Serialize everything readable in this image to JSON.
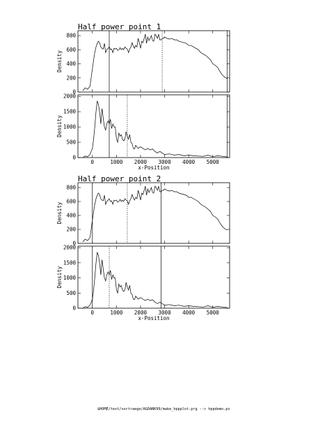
{
  "footer": "$HOME/text/vortraege/AGDANK99/make_hppplot.prg --> hppdemo.ps",
  "chart_data": [
    {
      "type": "line",
      "title": "Half power point 1",
      "ylabel": "Density",
      "xlabel": "",
      "xlim": [
        -600,
        5700
      ],
      "ylim": [
        0,
        870
      ],
      "xticks": [
        0,
        1000,
        2000,
        3000,
        4000,
        5000
      ],
      "xtick_labels": [],
      "yticks": [
        0,
        200,
        400,
        600,
        800
      ],
      "ytick_labels": [
        "0",
        "200",
        "400",
        "600",
        "800"
      ],
      "grid": false,
      "series": [
        {
          "x": [
            -400,
            -300,
            -200,
            -100,
            0,
            50,
            100,
            150,
            200,
            250,
            300,
            350,
            400,
            450,
            500,
            550,
            600,
            650,
            700,
            750,
            800,
            850,
            900,
            950,
            1000,
            1050,
            1100,
            1150,
            1200,
            1250,
            1300,
            1350,
            1400,
            1450,
            1500,
            1550,
            1600,
            1650,
            1700,
            1750,
            1800,
            1850,
            1900,
            1950,
            2000,
            2050,
            2100,
            2150,
            2200,
            2250,
            2300,
            2350,
            2400,
            2450,
            2500,
            2550,
            2600,
            2650,
            2700,
            2750,
            2800,
            2850,
            2900,
            2950,
            3000,
            3100,
            3200,
            3300,
            3400,
            3500,
            3600,
            3700,
            3800,
            3900,
            4000,
            4100,
            4200,
            4300,
            4400,
            4500,
            4600,
            4700,
            4800,
            4900,
            5000,
            5100,
            5200,
            5300,
            5400,
            5500,
            5600
          ],
          "y": [
            20,
            60,
            40,
            80,
            330,
            450,
            560,
            640,
            690,
            720,
            700,
            640,
            620,
            610,
            690,
            560,
            600,
            620,
            640,
            600,
            610,
            560,
            620,
            610,
            620,
            590,
            600,
            630,
            600,
            620,
            600,
            640,
            620,
            610,
            560,
            610,
            640,
            700,
            650,
            620,
            660,
            640,
            760,
            700,
            620,
            720,
            700,
            760,
            820,
            690,
            780,
            730,
            760,
            800,
            730,
            720,
            820,
            800,
            760,
            820,
            740,
            740,
            760,
            760,
            780,
            760,
            750,
            760,
            740,
            740,
            720,
            710,
            700,
            690,
            660,
            660,
            640,
            620,
            600,
            560,
            540,
            520,
            490,
            460,
            400,
            380,
            350,
            290,
            240,
            210,
            190
          ]
        }
      ],
      "vlines": [
        {
          "x": 700,
          "style": "solid"
        },
        {
          "x": 2900,
          "style": "dotted"
        },
        {
          "x": 5600,
          "style": "solid"
        }
      ]
    },
    {
      "type": "line",
      "title": "",
      "ylabel": "Density",
      "xlabel": "x-Position",
      "xlim": [
        -600,
        5700
      ],
      "ylim": [
        0,
        2050
      ],
      "xticks": [
        0,
        1000,
        2000,
        3000,
        4000,
        5000
      ],
      "xtick_labels": [
        "0",
        "1000",
        "2000",
        "3000",
        "4000",
        "5000"
      ],
      "yticks": [
        0,
        500,
        1000,
        1500,
        2000
      ],
      "ytick_labels": [
        "0",
        "500",
        "1000",
        "1500",
        "2000"
      ],
      "grid": false,
      "series": [
        {
          "x": [
            -400,
            -300,
            -200,
            -100,
            0,
            50,
            100,
            150,
            200,
            250,
            300,
            350,
            400,
            450,
            500,
            550,
            600,
            650,
            700,
            750,
            800,
            850,
            900,
            950,
            1000,
            1050,
            1100,
            1150,
            1200,
            1250,
            1300,
            1350,
            1400,
            1450,
            1500,
            1550,
            1600,
            1650,
            1700,
            1750,
            1800,
            1900,
            2000,
            2100,
            2200,
            2300,
            2400,
            2500,
            2600,
            2700,
            2800,
            2900,
            3000,
            3200,
            3400,
            3600,
            3800,
            4000,
            4200,
            4400,
            4600,
            4800,
            5000,
            5200,
            5400,
            5600
          ],
          "y": [
            0,
            50,
            30,
            100,
            300,
            600,
            1000,
            1500,
            1850,
            1750,
            1500,
            1100,
            1600,
            1300,
            1000,
            900,
            1100,
            1200,
            1100,
            1250,
            950,
            1100,
            1000,
            1000,
            600,
            500,
            800,
            700,
            750,
            600,
            550,
            600,
            850,
            700,
            600,
            750,
            500,
            450,
            300,
            280,
            400,
            300,
            350,
            300,
            250,
            300,
            250,
            280,
            200,
            150,
            200,
            150,
            100,
            120,
            80,
            100,
            60,
            80,
            60,
            50,
            40,
            80,
            30,
            60,
            40,
            20
          ]
        }
      ],
      "vlines": [
        {
          "x": 700,
          "style": "solid"
        },
        {
          "x": 1450,
          "style": "dotted"
        },
        {
          "x": 5600,
          "style": "solid"
        }
      ]
    },
    {
      "type": "line",
      "title": "Half power point 2",
      "ylabel": "Density",
      "xlabel": "",
      "xlim": [
        -600,
        5700
      ],
      "ylim": [
        0,
        870
      ],
      "xticks": [
        0,
        1000,
        2000,
        3000,
        4000,
        5000
      ],
      "xtick_labels": [],
      "yticks": [
        0,
        200,
        400,
        600,
        800
      ],
      "ytick_labels": [
        "0",
        "200",
        "400",
        "600",
        "800"
      ],
      "grid": false,
      "series": [
        {
          "x": [
            -400,
            -300,
            -200,
            -100,
            0,
            50,
            100,
            150,
            200,
            250,
            300,
            350,
            400,
            450,
            500,
            550,
            600,
            650,
            700,
            750,
            800,
            850,
            900,
            950,
            1000,
            1050,
            1100,
            1150,
            1200,
            1250,
            1300,
            1350,
            1400,
            1450,
            1500,
            1550,
            1600,
            1650,
            1700,
            1750,
            1800,
            1850,
            1900,
            1950,
            2000,
            2050,
            2100,
            2150,
            2200,
            2250,
            2300,
            2350,
            2400,
            2450,
            2500,
            2550,
            2600,
            2650,
            2700,
            2750,
            2800,
            2850,
            2900,
            2950,
            3000,
            3100,
            3200,
            3300,
            3400,
            3500,
            3600,
            3700,
            3800,
            3900,
            4000,
            4100,
            4200,
            4300,
            4400,
            4500,
            4600,
            4700,
            4800,
            4900,
            5000,
            5100,
            5200,
            5300,
            5400,
            5500,
            5600
          ],
          "y": [
            20,
            60,
            40,
            80,
            330,
            450,
            560,
            640,
            690,
            720,
            700,
            640,
            620,
            610,
            690,
            560,
            600,
            620,
            640,
            600,
            610,
            560,
            620,
            610,
            620,
            590,
            600,
            630,
            600,
            620,
            600,
            640,
            620,
            610,
            560,
            610,
            640,
            700,
            650,
            620,
            660,
            640,
            760,
            700,
            620,
            720,
            700,
            760,
            820,
            690,
            780,
            730,
            760,
            800,
            730,
            720,
            820,
            800,
            760,
            820,
            740,
            740,
            760,
            760,
            780,
            760,
            750,
            760,
            740,
            740,
            720,
            710,
            700,
            690,
            660,
            660,
            640,
            620,
            600,
            560,
            540,
            520,
            490,
            460,
            400,
            380,
            350,
            290,
            240,
            210,
            190
          ]
        }
      ],
      "vlines": [
        {
          "x": 0,
          "style": "solid"
        },
        {
          "x": 1450,
          "style": "dotted"
        },
        {
          "x": 2850,
          "style": "solid"
        }
      ]
    },
    {
      "type": "line",
      "title": "",
      "ylabel": "Density",
      "xlabel": "x-Position",
      "xlim": [
        -600,
        5700
      ],
      "ylim": [
        0,
        2050
      ],
      "xticks": [
        0,
        1000,
        2000,
        3000,
        4000,
        5000
      ],
      "xtick_labels": [
        "0",
        "1000",
        "2000",
        "3000",
        "4000",
        "5000"
      ],
      "yticks": [
        0,
        500,
        1000,
        1500,
        2000
      ],
      "ytick_labels": [
        "0",
        "500",
        "1000",
        "1500",
        "2000"
      ],
      "grid": false,
      "series": [
        {
          "x": [
            -400,
            -300,
            -200,
            -100,
            0,
            50,
            100,
            150,
            200,
            250,
            300,
            350,
            400,
            450,
            500,
            550,
            600,
            650,
            700,
            750,
            800,
            850,
            900,
            950,
            1000,
            1050,
            1100,
            1150,
            1200,
            1250,
            1300,
            1350,
            1400,
            1450,
            1500,
            1550,
            1600,
            1650,
            1700,
            1750,
            1800,
            1900,
            2000,
            2100,
            2200,
            2300,
            2400,
            2500,
            2600,
            2700,
            2800,
            2900,
            3000,
            3200,
            3400,
            3600,
            3800,
            4000,
            4200,
            4400,
            4600,
            4800,
            5000,
            5200,
            5400,
            5600
          ],
          "y": [
            0,
            50,
            30,
            100,
            300,
            600,
            1000,
            1500,
            1850,
            1750,
            1500,
            1100,
            1600,
            1300,
            1000,
            900,
            1100,
            1200,
            1100,
            1250,
            950,
            1100,
            1000,
            1000,
            600,
            500,
            800,
            700,
            750,
            600,
            550,
            600,
            850,
            700,
            600,
            750,
            500,
            450,
            300,
            280,
            400,
            300,
            350,
            300,
            250,
            300,
            250,
            280,
            200,
            150,
            200,
            150,
            100,
            120,
            80,
            100,
            60,
            80,
            60,
            50,
            40,
            80,
            30,
            60,
            40,
            20
          ]
        }
      ],
      "vlines": [
        {
          "x": 0,
          "style": "solid"
        },
        {
          "x": 700,
          "style": "dotted"
        },
        {
          "x": 2850,
          "style": "solid"
        }
      ]
    }
  ]
}
